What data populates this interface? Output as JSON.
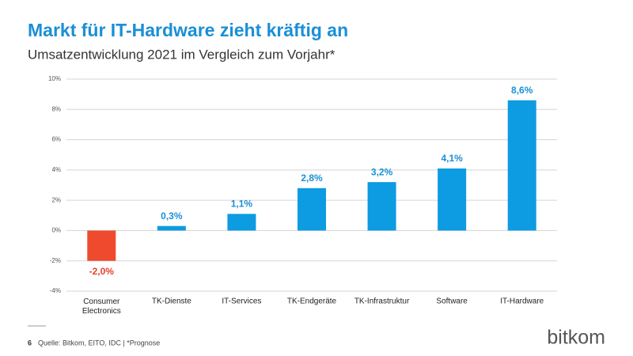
{
  "chart_data": {
    "type": "bar",
    "title": "Markt für IT-Hardware zieht kräftig an",
    "subtitle": "Umsatzentwicklung 2021 im Vergleich zum Vorjahr*",
    "categories": [
      "Consumer Electronics",
      "TK-Dienste",
      "IT-Services",
      "TK-Endgeräte",
      "TK-Infrastruktur",
      "Software",
      "IT-Hardware"
    ],
    "values": [
      -2.0,
      0.3,
      1.1,
      2.8,
      3.2,
      4.1,
      8.6
    ],
    "value_labels": [
      "-2,0%",
      "0,3%",
      "1,1%",
      "2,8%",
      "3,2%",
      "4,1%",
      "8,6%"
    ],
    "colors": [
      "#f04a2e",
      "#0d9be2",
      "#0d9be2",
      "#0d9be2",
      "#0d9be2",
      "#0d9be2",
      "#0d9be2"
    ],
    "ylim": [
      -4,
      10
    ],
    "yticks": [
      {
        "value": -4,
        "label": "-4%"
      },
      {
        "value": -2,
        "label": "-2%"
      },
      {
        "value": 0,
        "label": "0%"
      },
      {
        "value": 2,
        "label": "2%"
      },
      {
        "value": 4,
        "label": "4%"
      },
      {
        "value": 6,
        "label": "6%"
      },
      {
        "value": 8,
        "label": "8%"
      },
      {
        "value": 10,
        "label": "10%"
      }
    ],
    "grid": true
  },
  "footer": {
    "page": "6",
    "source": "Quelle: Bitkom, EITO, IDC | *Prognose",
    "logo": "bitkom"
  }
}
